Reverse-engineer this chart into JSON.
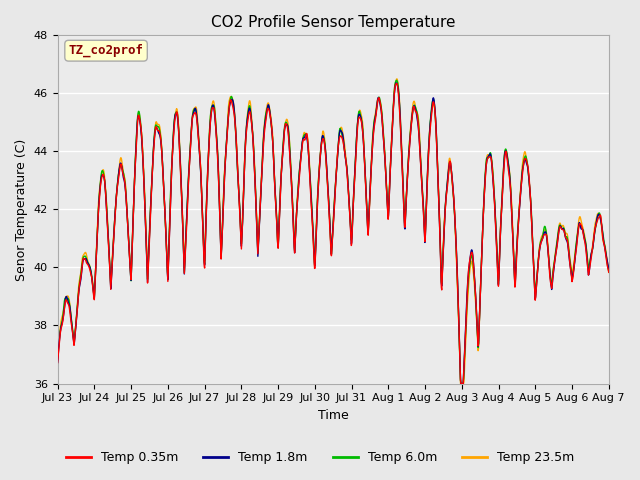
{
  "title": "CO2 Profile Sensor Temperature",
  "xlabel": "Time",
  "ylabel": "Senor Temperature (C)",
  "ylim": [
    36,
    48
  ],
  "label_text": "TZ_co2prof",
  "label_fg": "#8B0000",
  "label_bg": "#FFFFCC",
  "label_border": "#AAAAAA",
  "outer_bg": "#E8E8E8",
  "plot_bg": "#EBEBEB",
  "grid_color": "#FFFFFF",
  "series": [
    {
      "name": "Temp 0.35m",
      "color": "#FF0000"
    },
    {
      "name": "Temp 1.8m",
      "color": "#00008B"
    },
    {
      "name": "Temp 6.0m",
      "color": "#00BB00"
    },
    {
      "name": "Temp 23.5m",
      "color": "#FFA500"
    }
  ],
  "tick_labels": [
    "Jul 23",
    "Jul 24",
    "Jul 25",
    "Jul 26",
    "Jul 27",
    "Jul 28",
    "Jul 29",
    "Jul 30",
    "Jul 31",
    "Aug 1",
    "Aug 2",
    "Aug 3",
    "Aug 4",
    "Aug 5",
    "Aug 6",
    "Aug 7"
  ],
  "yticks": [
    36,
    38,
    40,
    42,
    44,
    46,
    48
  ],
  "title_fontsize": 11,
  "axis_label_fontsize": 9,
  "tick_fontsize": 8,
  "legend_fontsize": 9
}
